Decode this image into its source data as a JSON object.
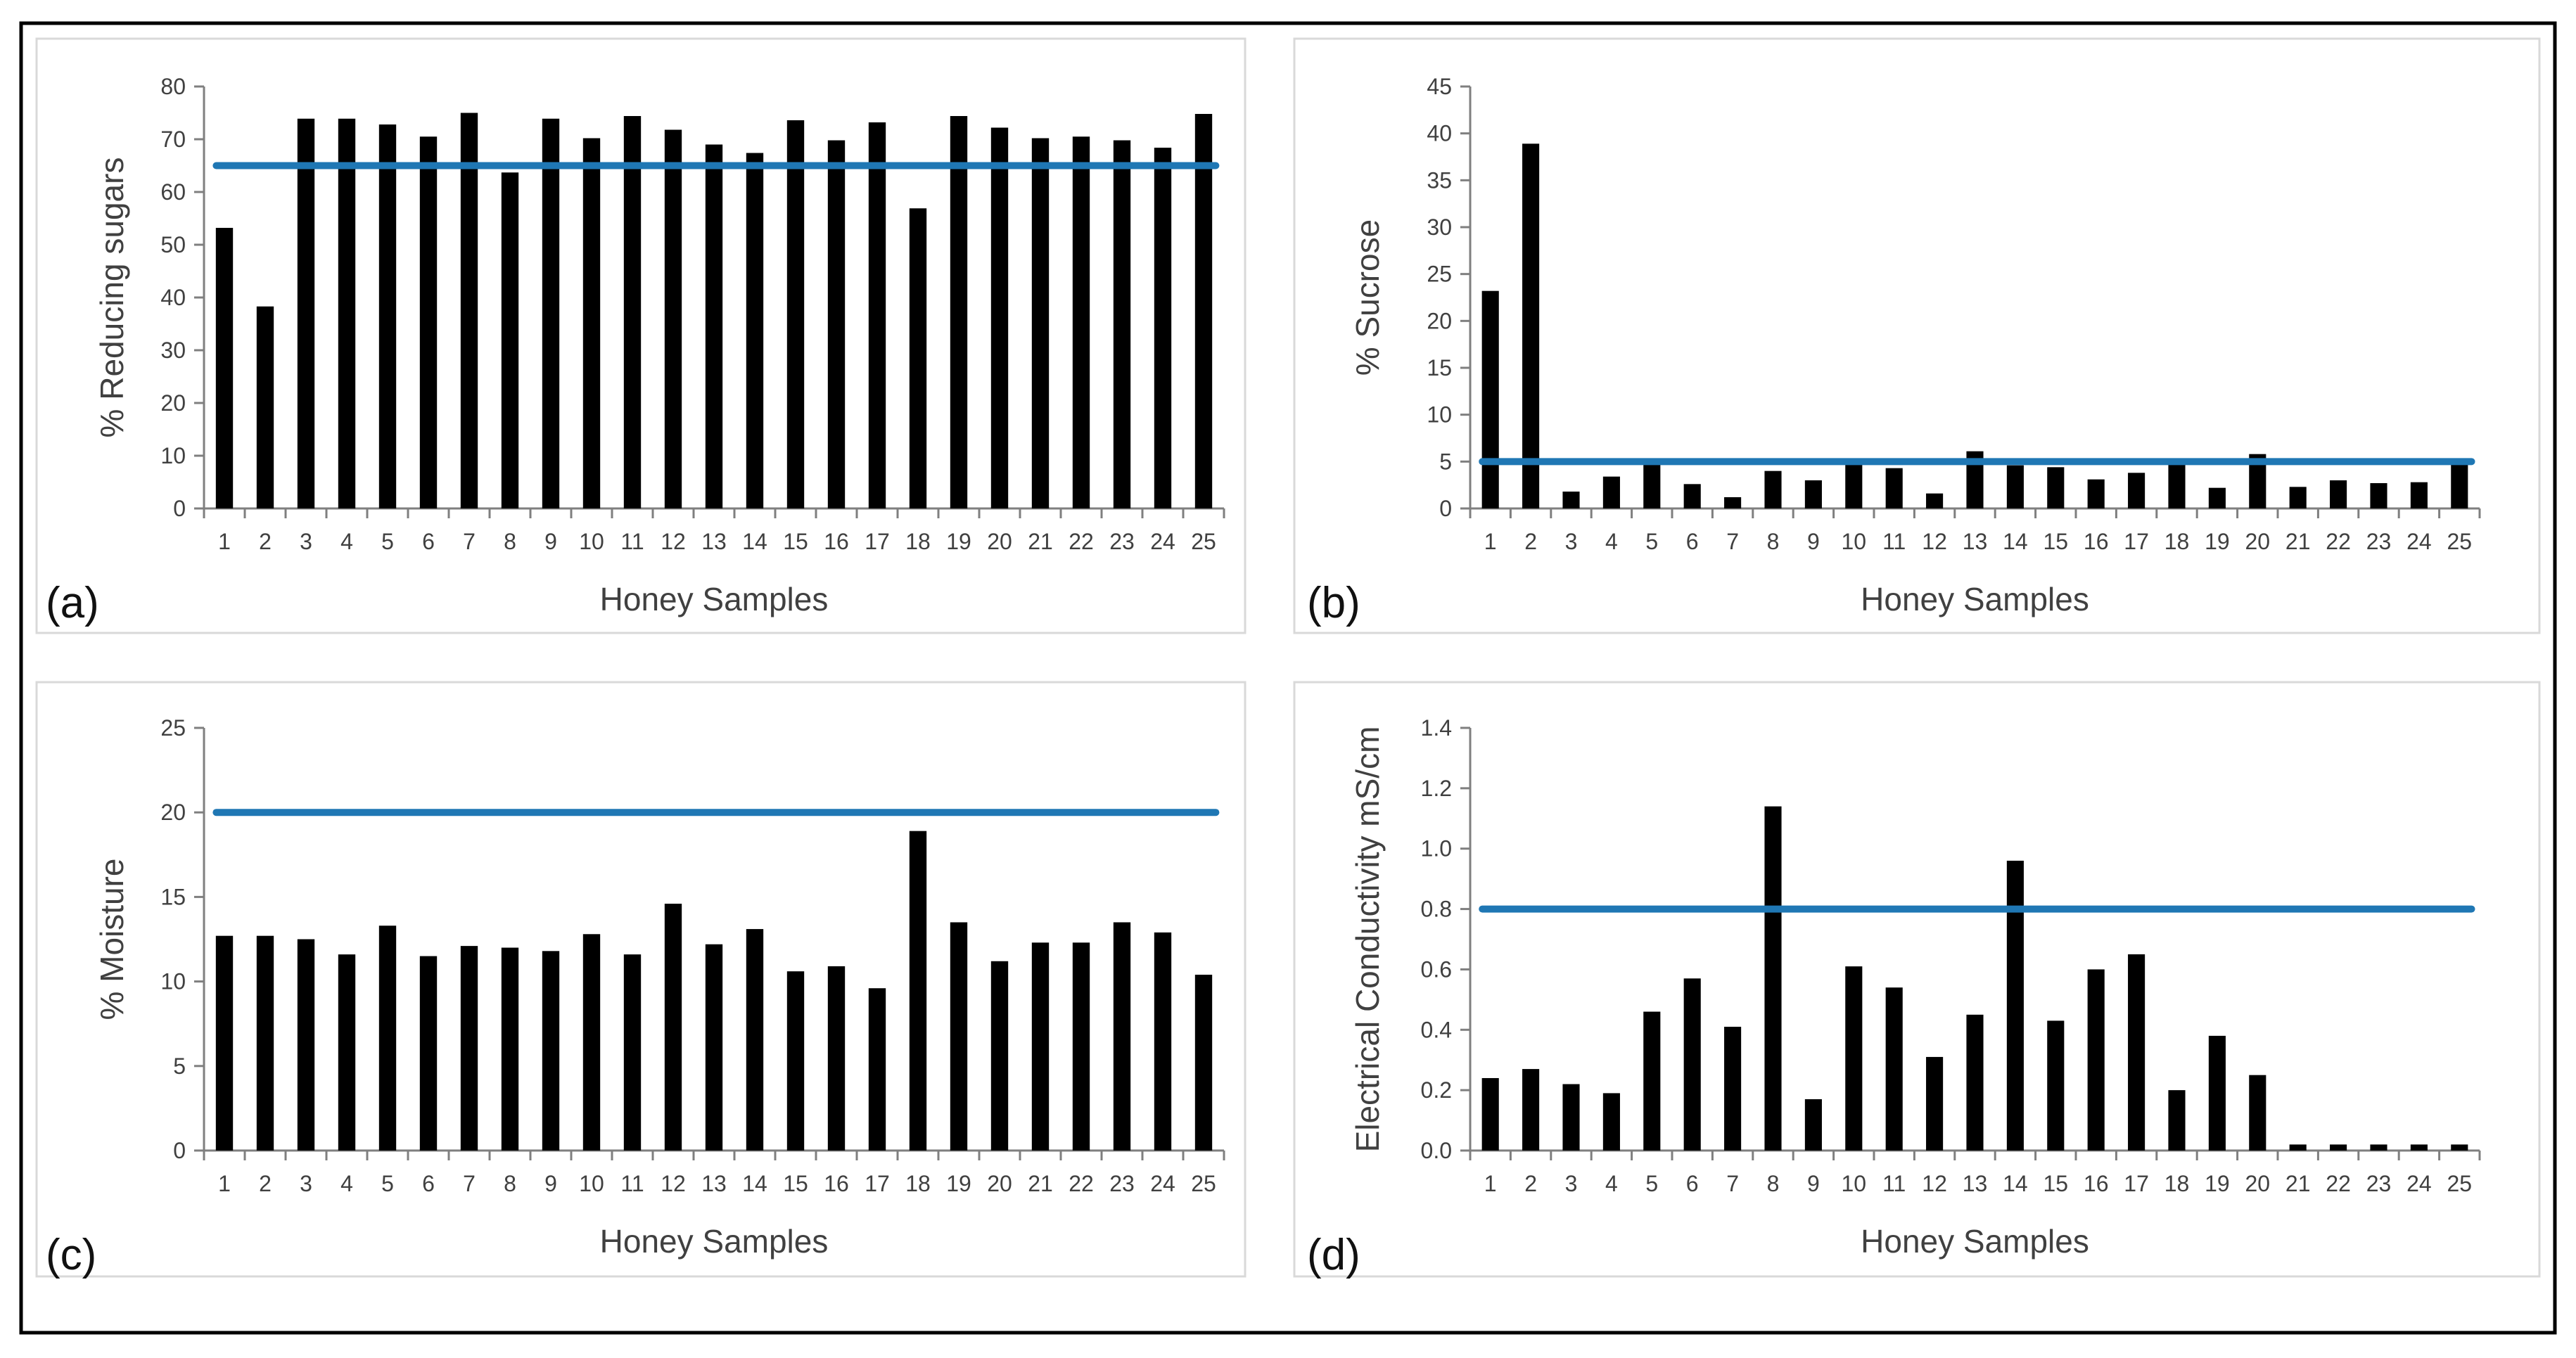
{
  "colors": {
    "bar": "#000000",
    "threshold": "#1f77b4",
    "axis": "#7f7f7f",
    "text": "#404040",
    "frame": "#000000",
    "panel_border": "#d9d9d9"
  },
  "chart_data": [
    {
      "type": "bar",
      "panel_label": "(a)",
      "xlabel": "Honey Samples",
      "ylabel": "% Reducing sugars",
      "categories": [
        "1",
        "2",
        "3",
        "4",
        "5",
        "6",
        "7",
        "8",
        "9",
        "10",
        "11",
        "12",
        "13",
        "14",
        "15",
        "16",
        "17",
        "18",
        "19",
        "20",
        "21",
        "22",
        "23",
        "24",
        "25"
      ],
      "values": [
        53.2,
        38.3,
        73.9,
        73.9,
        72.8,
        70.5,
        75.0,
        63.7,
        73.9,
        70.2,
        74.4,
        71.8,
        69.0,
        67.4,
        73.6,
        69.8,
        73.2,
        56.9,
        74.4,
        72.2,
        70.2,
        70.5,
        69.8,
        68.4,
        74.8
      ],
      "threshold": 65,
      "ylim": [
        0,
        80
      ],
      "yticks": [
        0,
        10,
        20,
        30,
        40,
        50,
        60,
        70,
        80
      ],
      "ytick_labels": [
        "0",
        "10",
        "20",
        "30",
        "40",
        "50",
        "60",
        "70",
        "80"
      ]
    },
    {
      "type": "bar",
      "panel_label": "(b)",
      "xlabel": "Honey Samples",
      "ylabel": "% Sucrose",
      "categories": [
        "1",
        "2",
        "3",
        "4",
        "5",
        "6",
        "7",
        "8",
        "9",
        "10",
        "11",
        "12",
        "13",
        "14",
        "15",
        "16",
        "17",
        "18",
        "19",
        "20",
        "21",
        "22",
        "23",
        "24",
        "25"
      ],
      "values": [
        23.2,
        38.9,
        1.8,
        3.4,
        4.7,
        2.6,
        1.2,
        4.0,
        3.0,
        4.8,
        4.3,
        1.6,
        6.1,
        4.6,
        4.4,
        3.1,
        3.8,
        4.8,
        2.2,
        5.8,
        2.3,
        3.0,
        2.7,
        2.8,
        4.9
      ],
      "threshold": 5,
      "ylim": [
        0,
        45
      ],
      "yticks": [
        0,
        5,
        10,
        15,
        20,
        25,
        30,
        35,
        40,
        45
      ],
      "ytick_labels": [
        "0",
        "5",
        "10",
        "15",
        "20",
        "25",
        "30",
        "35",
        "40",
        "45"
      ]
    },
    {
      "type": "bar",
      "panel_label": "(c)",
      "xlabel": "Honey Samples",
      "ylabel": "% Moisture",
      "categories": [
        "1",
        "2",
        "3",
        "4",
        "5",
        "6",
        "7",
        "8",
        "9",
        "10",
        "11",
        "12",
        "13",
        "14",
        "15",
        "16",
        "17",
        "18",
        "19",
        "20",
        "21",
        "22",
        "23",
        "24",
        "25"
      ],
      "values": [
        12.7,
        12.7,
        12.5,
        11.6,
        13.3,
        11.5,
        12.1,
        12.0,
        11.8,
        12.8,
        11.6,
        14.6,
        12.2,
        13.1,
        10.6,
        10.9,
        9.6,
        18.9,
        13.5,
        11.2,
        12.3,
        12.3,
        13.5,
        12.9,
        10.4
      ],
      "threshold": 20,
      "ylim": [
        0,
        25
      ],
      "yticks": [
        0,
        5,
        10,
        15,
        20,
        25
      ],
      "ytick_labels": [
        "0",
        "5",
        "10",
        "15",
        "20",
        "25"
      ]
    },
    {
      "type": "bar",
      "panel_label": "(d)",
      "xlabel": "Honey Samples",
      "ylabel": "Electrical Conductivity mS/cm",
      "categories": [
        "1",
        "2",
        "3",
        "4",
        "5",
        "6",
        "7",
        "8",
        "9",
        "10",
        "11",
        "12",
        "13",
        "14",
        "15",
        "16",
        "17",
        "18",
        "19",
        "20",
        "21",
        "22",
        "23",
        "24",
        "25"
      ],
      "values": [
        0.24,
        0.27,
        0.22,
        0.19,
        0.46,
        0.57,
        0.41,
        1.14,
        0.17,
        0.61,
        0.54,
        0.31,
        0.45,
        0.96,
        0.43,
        0.6,
        0.65,
        0.2,
        0.38,
        0.25,
        0.02,
        0.02,
        0.02,
        0.02,
        0.02
      ],
      "threshold": 0.8,
      "ylim": [
        0,
        1.4
      ],
      "yticks": [
        0,
        0.2,
        0.4,
        0.6,
        0.8,
        1.0,
        1.2,
        1.4
      ],
      "ytick_labels": [
        "0.0",
        "0.2",
        "0.4",
        "0.6",
        "0.8",
        "1.0",
        "1.2",
        "1.4"
      ]
    }
  ]
}
